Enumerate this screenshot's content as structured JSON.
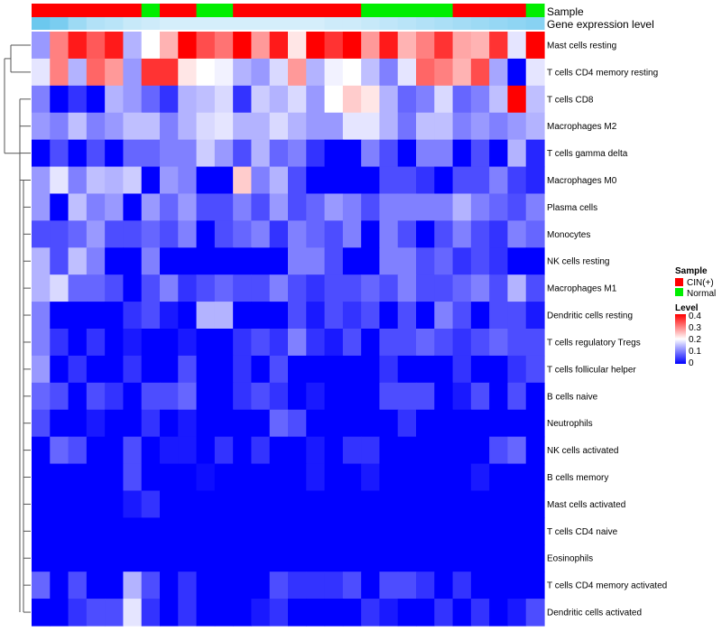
{
  "chart_data": {
    "type": "heatmap",
    "title": "",
    "colorscale": {
      "min": 0,
      "max": 0.4,
      "colors": [
        "#0000ff",
        "#ffffff",
        "#ff0000"
      ],
      "legend_title": "Level",
      "ticks": [
        "0.4",
        "0.3",
        "0.2",
        "0.1",
        "0"
      ]
    },
    "annotation_tracks": [
      {
        "name": "Sample",
        "type": "categorical"
      },
      {
        "name": "Gene expression level",
        "type": "continuous"
      }
    ],
    "sample_legend": {
      "title": "Sample",
      "items": [
        {
          "label": "CIN(+)",
          "color": "#ff0000"
        },
        {
          "label": "Normal",
          "color": "#00ee00"
        }
      ]
    },
    "columns": [
      {
        "sample": "CIN(+)",
        "expr": 0.8
      },
      {
        "sample": "CIN(+)",
        "expr": 0.7
      },
      {
        "sample": "CIN(+)",
        "expr": 0.45
      },
      {
        "sample": "CIN(+)",
        "expr": 0.3
      },
      {
        "sample": "CIN(+)",
        "expr": 0.25
      },
      {
        "sample": "CIN(+)",
        "expr": 0.15
      },
      {
        "sample": "Normal",
        "expr": 0.1
      },
      {
        "sample": "CIN(+)",
        "expr": 0.05
      },
      {
        "sample": "CIN(+)",
        "expr": 0.05
      },
      {
        "sample": "Normal",
        "expr": 0.05
      },
      {
        "sample": "Normal",
        "expr": 0.05
      },
      {
        "sample": "CIN(+)",
        "expr": 0.05
      },
      {
        "sample": "CIN(+)",
        "expr": 0.05
      },
      {
        "sample": "CIN(+)",
        "expr": 0.05
      },
      {
        "sample": "CIN(+)",
        "expr": 0.05
      },
      {
        "sample": "CIN(+)",
        "expr": 0.05
      },
      {
        "sample": "CIN(+)",
        "expr": 0.1
      },
      {
        "sample": "CIN(+)",
        "expr": 0.1
      },
      {
        "sample": "Normal",
        "expr": 0.15
      },
      {
        "sample": "Normal",
        "expr": 0.2
      },
      {
        "sample": "Normal",
        "expr": 0.25
      },
      {
        "sample": "Normal",
        "expr": 0.3
      },
      {
        "sample": "Normal",
        "expr": 0.35
      },
      {
        "sample": "CIN(+)",
        "expr": 0.4
      },
      {
        "sample": "CIN(+)",
        "expr": 0.45
      },
      {
        "sample": "CIN(+)",
        "expr": 0.5
      },
      {
        "sample": "CIN(+)",
        "expr": 0.55
      },
      {
        "sample": "Normal",
        "expr": 0.6
      }
    ],
    "rows": [
      {
        "label": "Mast cells resting",
        "values": [
          0.12,
          0.3,
          0.38,
          0.33,
          0.38,
          0.14,
          0.2,
          0.26,
          0.4,
          0.34,
          0.31,
          0.4,
          0.28,
          0.38,
          0.22,
          0.4,
          0.36,
          0.4,
          0.28,
          0.38,
          0.26,
          0.3,
          0.36,
          0.27,
          0.26,
          0.36,
          0.18,
          0.4
        ]
      },
      {
        "label": "T cells CD4 memory resting",
        "values": [
          0.18,
          0.3,
          0.14,
          0.32,
          0.28,
          0.12,
          0.36,
          0.36,
          0.22,
          0.2,
          0.19,
          0.14,
          0.12,
          0.17,
          0.28,
          0.14,
          0.19,
          0.2,
          0.15,
          0.1,
          0.18,
          0.32,
          0.3,
          0.26,
          0.34,
          0.13,
          0.0,
          0.18
        ]
      },
      {
        "label": "T cells CD8",
        "values": [
          0.1,
          0.0,
          0.04,
          0.0,
          0.14,
          0.12,
          0.08,
          0.04,
          0.14,
          0.15,
          0.17,
          0.04,
          0.16,
          0.14,
          0.17,
          0.12,
          0.2,
          0.24,
          0.22,
          0.14,
          0.08,
          0.1,
          0.17,
          0.08,
          0.1,
          0.15,
          0.4,
          0.15
        ]
      },
      {
        "label": "Macrophages M2",
        "values": [
          0.12,
          0.1,
          0.15,
          0.1,
          0.12,
          0.15,
          0.15,
          0.1,
          0.14,
          0.17,
          0.18,
          0.14,
          0.14,
          0.17,
          0.14,
          0.12,
          0.12,
          0.18,
          0.18,
          0.14,
          0.09,
          0.15,
          0.15,
          0.1,
          0.12,
          0.1,
          0.12,
          0.14
        ]
      },
      {
        "label": "T cells gamma delta",
        "values": [
          0.0,
          0.06,
          0.0,
          0.06,
          0.0,
          0.08,
          0.08,
          0.1,
          0.1,
          0.16,
          0.12,
          0.06,
          0.14,
          0.08,
          0.1,
          0.04,
          0.0,
          0.0,
          0.1,
          0.06,
          0.0,
          0.1,
          0.1,
          0.0,
          0.06,
          0.0,
          0.14,
          0.03
        ]
      },
      {
        "label": "Macrophages M0",
        "values": [
          0.12,
          0.18,
          0.1,
          0.15,
          0.14,
          0.16,
          0.0,
          0.12,
          0.1,
          0.0,
          0.0,
          0.24,
          0.1,
          0.14,
          0.06,
          0.0,
          0.0,
          0.0,
          0.0,
          0.06,
          0.06,
          0.04,
          0.0,
          0.06,
          0.06,
          0.1,
          0.05,
          0.03
        ]
      },
      {
        "label": "Plasma cells",
        "values": [
          0.12,
          0.0,
          0.15,
          0.1,
          0.12,
          0.0,
          0.12,
          0.08,
          0.12,
          0.06,
          0.06,
          0.1,
          0.06,
          0.12,
          0.06,
          0.08,
          0.12,
          0.1,
          0.06,
          0.1,
          0.1,
          0.1,
          0.1,
          0.14,
          0.1,
          0.08,
          0.06,
          0.1
        ]
      },
      {
        "label": "Monocytes",
        "values": [
          0.06,
          0.06,
          0.08,
          0.12,
          0.06,
          0.06,
          0.08,
          0.06,
          0.1,
          0.0,
          0.06,
          0.08,
          0.1,
          0.04,
          0.1,
          0.08,
          0.06,
          0.1,
          0.0,
          0.1,
          0.06,
          0.0,
          0.06,
          0.1,
          0.06,
          0.04,
          0.1,
          0.08
        ]
      },
      {
        "label": "NK cells resting",
        "values": [
          0.14,
          0.06,
          0.15,
          0.1,
          0.0,
          0.0,
          0.1,
          0.0,
          0.0,
          0.0,
          0.0,
          0.0,
          0.0,
          0.0,
          0.1,
          0.1,
          0.06,
          0.0,
          0.0,
          0.1,
          0.1,
          0.06,
          0.08,
          0.04,
          0.06,
          0.04,
          0.0,
          0.0
        ]
      },
      {
        "label": "Macrophages M1",
        "values": [
          0.14,
          0.17,
          0.08,
          0.08,
          0.06,
          0.0,
          0.06,
          0.1,
          0.04,
          0.06,
          0.08,
          0.06,
          0.06,
          0.1,
          0.06,
          0.04,
          0.06,
          0.06,
          0.08,
          0.06,
          0.1,
          0.06,
          0.06,
          0.08,
          0.1,
          0.06,
          0.14,
          0.06
        ]
      },
      {
        "label": "Dendritic cells resting",
        "values": [
          0.1,
          0.0,
          0.0,
          0.0,
          0.0,
          0.04,
          0.06,
          0.02,
          0.0,
          0.14,
          0.14,
          0.0,
          0.0,
          0.0,
          0.06,
          0.02,
          0.06,
          0.04,
          0.06,
          0.0,
          0.06,
          0.0,
          0.1,
          0.06,
          0.0,
          0.06,
          0.06,
          0.02
        ]
      },
      {
        "label": "T cells regulatory  Tregs",
        "values": [
          0.1,
          0.04,
          0.0,
          0.04,
          0.0,
          0.02,
          0.0,
          0.0,
          0.02,
          0.0,
          0.0,
          0.04,
          0.06,
          0.04,
          0.1,
          0.04,
          0.02,
          0.06,
          0.0,
          0.06,
          0.06,
          0.08,
          0.06,
          0.04,
          0.06,
          0.08,
          0.06,
          0.06
        ]
      },
      {
        "label": "T cells follicular helper",
        "values": [
          0.12,
          0.0,
          0.04,
          0.0,
          0.0,
          0.04,
          0.0,
          0.0,
          0.06,
          0.0,
          0.0,
          0.04,
          0.0,
          0.06,
          0.0,
          0.0,
          0.0,
          0.0,
          0.0,
          0.04,
          0.0,
          0.0,
          0.0,
          0.04,
          0.0,
          0.0,
          0.04,
          0.06
        ]
      },
      {
        "label": "B cells naive",
        "values": [
          0.08,
          0.06,
          0.0,
          0.06,
          0.04,
          0.0,
          0.06,
          0.06,
          0.08,
          0.0,
          0.0,
          0.04,
          0.06,
          0.04,
          0.0,
          0.02,
          0.0,
          0.0,
          0.0,
          0.06,
          0.06,
          0.06,
          0.0,
          0.02,
          0.06,
          0.0,
          0.06,
          0.0
        ]
      },
      {
        "label": "Neutrophils",
        "values": [
          0.06,
          0.0,
          0.0,
          0.02,
          0.0,
          0.0,
          0.04,
          0.0,
          0.02,
          0.0,
          0.0,
          0.0,
          0.0,
          0.08,
          0.06,
          0.0,
          0.0,
          0.0,
          0.0,
          0.0,
          0.04,
          0.0,
          0.0,
          0.0,
          0.0,
          0.0,
          0.0,
          0.0
        ]
      },
      {
        "label": "NK cells activated",
        "values": [
          0.0,
          0.08,
          0.06,
          0.0,
          0.0,
          0.06,
          0.0,
          0.02,
          0.02,
          0.0,
          0.04,
          0.0,
          0.04,
          0.0,
          0.0,
          0.02,
          0.0,
          0.04,
          0.04,
          0.0,
          0.0,
          0.0,
          0.0,
          0.0,
          0.0,
          0.06,
          0.08,
          0.0
        ]
      },
      {
        "label": "B cells memory",
        "values": [
          0.0,
          0.0,
          0.0,
          0.0,
          0.0,
          0.06,
          0.0,
          0.0,
          0.0,
          0.01,
          0.0,
          0.0,
          0.0,
          0.0,
          0.0,
          0.02,
          0.0,
          0.0,
          0.02,
          0.0,
          0.0,
          0.0,
          0.0,
          0.0,
          0.02,
          0.0,
          0.0,
          0.0
        ]
      },
      {
        "label": "Mast cells activated",
        "values": [
          0.0,
          0.0,
          0.0,
          0.0,
          0.0,
          0.02,
          0.04,
          0.0,
          0.0,
          0.0,
          0.0,
          0.0,
          0.0,
          0.0,
          0.0,
          0.0,
          0.0,
          0.0,
          0.0,
          0.0,
          0.0,
          0.0,
          0.0,
          0.0,
          0.0,
          0.0,
          0.0,
          0.0
        ]
      },
      {
        "label": "T cells CD4 naive",
        "values": [
          0.0,
          0.0,
          0.0,
          0.0,
          0.0,
          0.0,
          0.0,
          0.0,
          0.0,
          0.0,
          0.0,
          0.0,
          0.0,
          0.0,
          0.0,
          0.0,
          0.0,
          0.0,
          0.0,
          0.0,
          0.0,
          0.0,
          0.0,
          0.0,
          0.0,
          0.0,
          0.0,
          0.0
        ]
      },
      {
        "label": "Eosinophils",
        "values": [
          0.0,
          0.0,
          0.0,
          0.0,
          0.0,
          0.0,
          0.0,
          0.0,
          0.0,
          0.0,
          0.0,
          0.0,
          0.0,
          0.0,
          0.0,
          0.0,
          0.0,
          0.0,
          0.0,
          0.0,
          0.0,
          0.0,
          0.0,
          0.0,
          0.0,
          0.0,
          0.0,
          0.0
        ]
      },
      {
        "label": "T cells CD4 memory activated",
        "values": [
          0.08,
          0.0,
          0.06,
          0.0,
          0.0,
          0.14,
          0.06,
          0.0,
          0.04,
          0.0,
          0.0,
          0.0,
          0.0,
          0.06,
          0.04,
          0.04,
          0.04,
          0.06,
          0.0,
          0.06,
          0.06,
          0.04,
          0.0,
          0.04,
          0.0,
          0.0,
          0.0,
          0.0
        ]
      },
      {
        "label": "Dendritic cells activated",
        "values": [
          0.0,
          0.0,
          0.04,
          0.06,
          0.06,
          0.18,
          0.04,
          0.0,
          0.04,
          0.0,
          0.0,
          0.0,
          0.02,
          0.04,
          0.0,
          0.0,
          0.0,
          0.0,
          0.04,
          0.02,
          0.0,
          0.0,
          0.04,
          0.0,
          0.04,
          0.0,
          0.02,
          0.06
        ]
      }
    ]
  }
}
